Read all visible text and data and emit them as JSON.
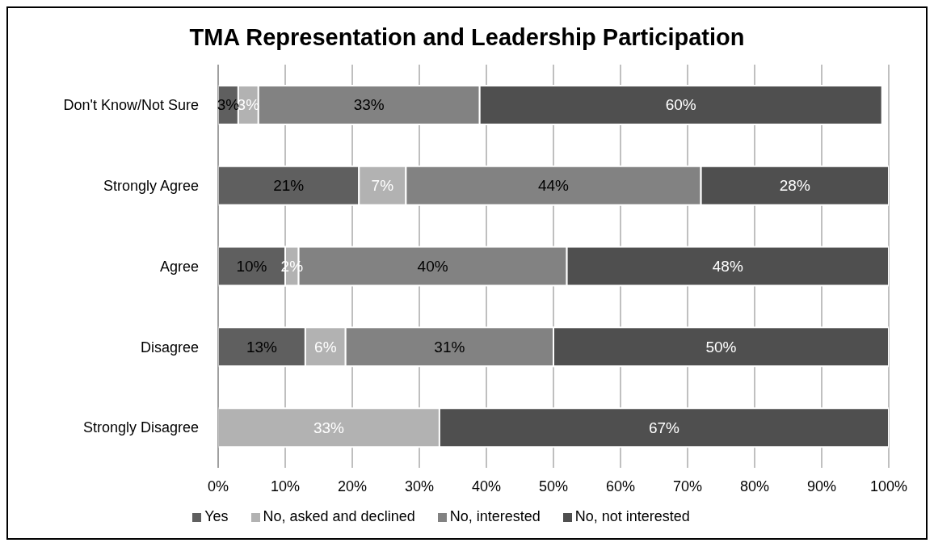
{
  "chart_data": {
    "type": "bar",
    "orientation": "horizontal",
    "stacked": true,
    "title": "TMA Representation and Leadership Participation",
    "categories": [
      "Don't Know/Not Sure",
      "Strongly Agree",
      "Agree",
      "Disagree",
      "Strongly Disagree"
    ],
    "series": [
      {
        "name": "Yes",
        "color": "#5f5f5f",
        "values": [
          3,
          21,
          10,
          13,
          0
        ],
        "value_labels": [
          "3%",
          "21%",
          "10%",
          "13%",
          null
        ]
      },
      {
        "name": "No, asked and declined",
        "color": "#b2b2b2",
        "values": [
          3,
          7,
          2,
          6,
          33
        ],
        "value_labels": [
          "3%",
          "7%",
          "2%",
          "6%",
          "33%"
        ]
      },
      {
        "name": "No, interested",
        "color": "#828282",
        "values": [
          33,
          44,
          40,
          31,
          0
        ],
        "value_labels": [
          "33%",
          "44%",
          "40%",
          "31%",
          null
        ]
      },
      {
        "name": "No, not interested",
        "color": "#4f4f4f",
        "values": [
          60,
          28,
          48,
          50,
          67
        ],
        "value_labels": [
          "60%",
          "28%",
          "48%",
          "50%",
          "67%"
        ]
      }
    ],
    "xlim": [
      0,
      100
    ],
    "xticks": [
      {
        "value": 0,
        "label": "0%"
      },
      {
        "value": 10,
        "label": "10%"
      },
      {
        "value": 20,
        "label": "20%"
      },
      {
        "value": 30,
        "label": "30%"
      },
      {
        "value": 40,
        "label": "40%"
      },
      {
        "value": 50,
        "label": "50%"
      },
      {
        "value": 60,
        "label": "60%"
      },
      {
        "value": 70,
        "label": "70%"
      },
      {
        "value": 80,
        "label": "80%"
      },
      {
        "value": 90,
        "label": "90%"
      },
      {
        "value": 100,
        "label": "100%"
      }
    ],
    "grid": "x",
    "legend": "bottom"
  }
}
